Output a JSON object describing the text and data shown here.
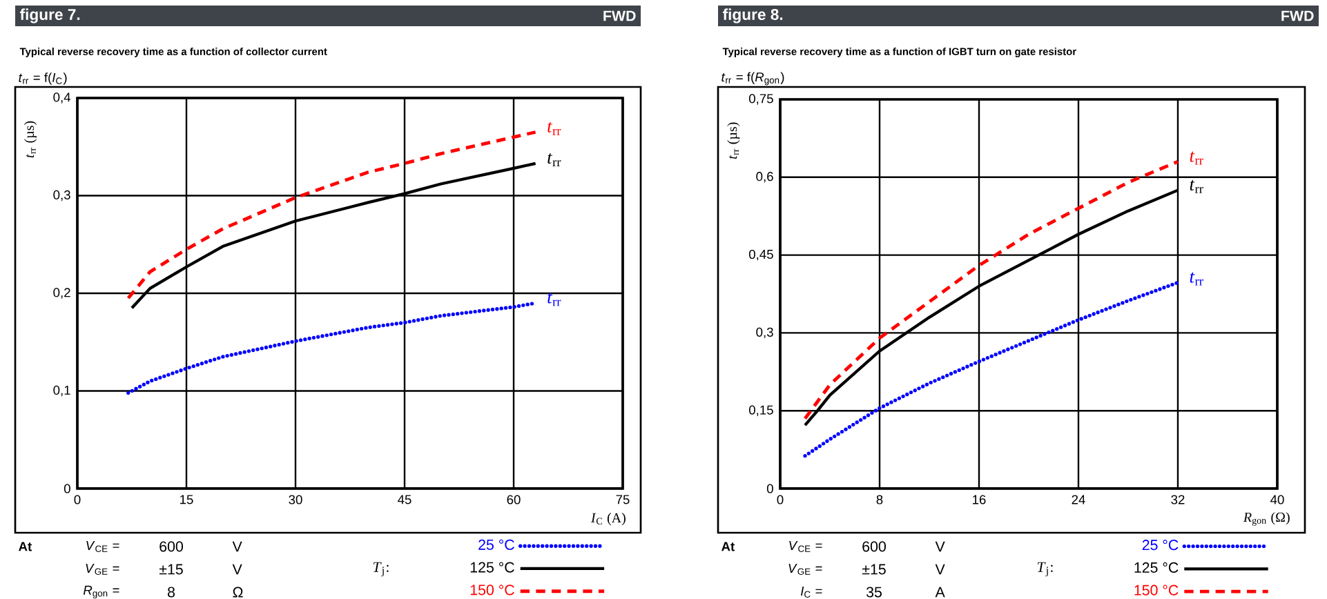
{
  "chart_data": [
    {
      "type": "line",
      "title": "figure 7.",
      "subtitle": "Typical reverse recovery time as a function of collector current",
      "xlabel": "*I*$_{C}$ (A)",
      "ylabel": "*t*$_{rr}$ (µs)",
      "legend_title": "*T*$_{j}$:",
      "annotations": [
        "FWD",
        "*t*$_{rr}$ = f(*I*$_{C}$)",
        "At",
        "*V*$_{CE}$ =",
        "600",
        "V",
        "*V*$_{GE}$ =",
        "±15",
        "V",
        "*R*$_{gon}$ =",
        "8",
        "Ω",
        "*t*$_{rr}$",
        "*t*$_{rr}$",
        "*t*$_{rr}$"
      ],
      "series": [
        {
          "name": "25 °C",
          "color": "#0000ff",
          "line_style": "dotted",
          "x": [
            7,
            10,
            15,
            20,
            30,
            40,
            45,
            50,
            60,
            63
          ],
          "values": [
            0.098,
            0.11,
            0.123,
            0.135,
            0.151,
            0.165,
            0.17,
            0.177,
            0.186,
            0.19
          ]
        },
        {
          "name": "125 °C",
          "color": "#000000",
          "line_style": "solid",
          "x": [
            7.5,
            10,
            15,
            20,
            30,
            40,
            45,
            50,
            60,
            63
          ],
          "values": [
            0.185,
            0.205,
            0.227,
            0.248,
            0.274,
            0.293,
            0.302,
            0.312,
            0.328,
            0.333
          ]
        },
        {
          "name": "150 °C",
          "color": "#ff0000",
          "line_style": "dashed",
          "x": [
            7,
            10,
            15,
            20,
            30,
            40,
            45,
            50,
            60,
            63
          ],
          "values": [
            0.195,
            0.222,
            0.245,
            0.266,
            0.298,
            0.324,
            0.333,
            0.343,
            0.36,
            0.365
          ]
        }
      ],
      "xlim": [
        0,
        75
      ],
      "ylim": [
        0,
        0.4
      ],
      "xticks": [
        0,
        15,
        30,
        45,
        60,
        75
      ],
      "yticks": [
        0,
        {
          "value": 0.1,
          "label": "0,1"
        },
        {
          "value": 0.2,
          "label": "0,2"
        },
        {
          "value": 0.3,
          "label": "0,3"
        },
        {
          "value": 0.4,
          "label": "0,4"
        }
      ],
      "grid": true,
      "legend": "bottom right"
    },
    {
      "type": "line",
      "title": "figure 8.",
      "subtitle": "Typical reverse recovery time as a function of IGBT turn on gate resistor",
      "xlabel": "*R*$_{gon}$ (Ω)",
      "ylabel": "*t*$_{rr}$ (µs)",
      "legend_title": "*T*$_{j}$:",
      "annotations": [
        "FWD",
        "*t*$_{rr}$ = f(*R*$_{gon}$)",
        "At",
        "*V*$_{CE}$ =",
        "600",
        "V",
        "*V*$_{GE}$ =",
        "±15",
        "V",
        "*I*$_{C}$ =",
        "35",
        "A",
        "*t*$_{rr}$",
        "*t*$_{rr}$",
        "*t*$_{rr}$"
      ],
      "series": [
        {
          "name": "25 °C",
          "color": "#0000ff",
          "line_style": "dotted",
          "x": [
            2,
            4,
            8,
            12,
            16,
            20,
            24,
            28,
            32
          ],
          "values": [
            0.063,
            0.095,
            0.155,
            0.203,
            0.245,
            0.285,
            0.325,
            0.362,
            0.397
          ]
        },
        {
          "name": "125 °C",
          "color": "#000000",
          "line_style": "solid",
          "x": [
            2,
            3,
            4,
            8,
            12,
            16,
            20,
            24,
            28,
            32
          ],
          "values": [
            0.122,
            0.15,
            0.18,
            0.265,
            0.33,
            0.39,
            0.44,
            0.49,
            0.535,
            0.575
          ]
        },
        {
          "name": "150 °C",
          "color": "#ff0000",
          "line_style": "dashed",
          "x": [
            2,
            4,
            8,
            12,
            16,
            20,
            24,
            28,
            32
          ],
          "values": [
            0.135,
            0.2,
            0.29,
            0.36,
            0.43,
            0.49,
            0.54,
            0.59,
            0.63
          ]
        }
      ],
      "xlim": [
        0,
        40
      ],
      "ylim": [
        0,
        0.75
      ],
      "xticks": [
        0,
        8,
        16,
        24,
        32,
        40
      ],
      "yticks": [
        0,
        {
          "value": 0.15,
          "label": "0,15"
        },
        {
          "value": 0.3,
          "label": "0,3"
        },
        {
          "value": 0.45,
          "label": "0,45"
        },
        {
          "value": 0.6,
          "label": "0,6"
        },
        {
          "value": 0.75,
          "label": "0,75"
        }
      ],
      "grid": true,
      "legend": "bottom right"
    }
  ]
}
